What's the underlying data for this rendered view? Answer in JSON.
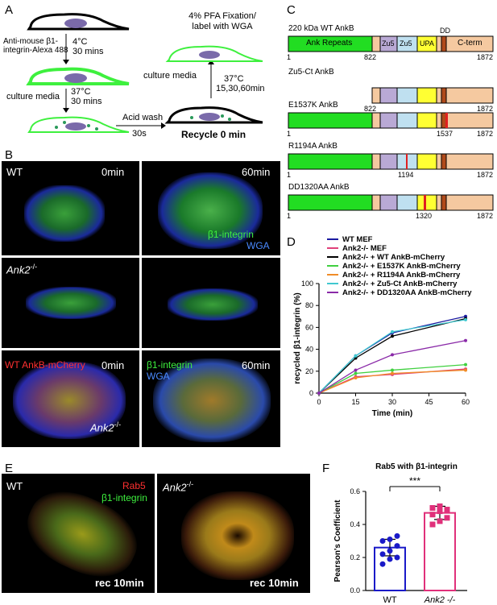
{
  "panels": {
    "A": "A",
    "B": "B",
    "C": "C",
    "D": "D",
    "E": "E",
    "F": "F"
  },
  "panelA": {
    "antibody": "Anti-mouse β1-\nintegrin-Alexa 488",
    "step1_temp": "4°C",
    "step1_time": "30 mins",
    "step2_temp": "37°C",
    "step2_media": "culture media",
    "step2_time": "30 mins",
    "acid_wash": "Acid wash",
    "acid_time": "30s",
    "recycle": "Recycle 0 min",
    "culture": "culture media",
    "step3_temp": "37°C",
    "step3_time": "15,30,60min",
    "fixation": "4% PFA Fixation/\nlabel with WGA"
  },
  "panelB": {
    "wt": "WT",
    "t0": "0min",
    "t60": "60min",
    "b1": "β1-integrin",
    "wga": "WGA",
    "ank2": "Ank2",
    "ko": "-/-",
    "wt_ankb": "WT AnkB-mCherry"
  },
  "panelC": {
    "constructs": [
      {
        "title": "220 kDa WT AnkB",
        "start": "1",
        "mid": "822",
        "end": "1872"
      },
      {
        "title": "Zu5-Ct AnkB",
        "start": "822",
        "end": "1872"
      },
      {
        "title": "E1537K AnkB",
        "start": "1",
        "mid": "1537",
        "end": "1872"
      },
      {
        "title": "R1194A AnkB",
        "start": "1",
        "mid": "1194",
        "end": "1872"
      },
      {
        "title": "DD1320AA AnkB",
        "start": "1",
        "mid": "1320",
        "end": "1872"
      }
    ],
    "domains": {
      "ank": "Ank Repeats",
      "zu5a": "Zu5",
      "zu5b": "Zu5",
      "upa": "UPA",
      "dd": "DD",
      "cterm": "C-term"
    }
  },
  "panelE": {
    "wt": "WT",
    "rab5": "Rab5",
    "b1": "β1-integrin",
    "ank2": "Ank2",
    "ko": "-/-",
    "rec": "rec 10min"
  },
  "chart_data": [
    {
      "type": "line",
      "ylabel": "recycled β1-integrin (%)",
      "xlabel": "Time (min)",
      "x": [
        0,
        15,
        30,
        60
      ],
      "xlim": [
        0,
        60
      ],
      "ylim": [
        0,
        100
      ],
      "xticks": [
        "0",
        "15",
        "30",
        "45",
        "60"
      ],
      "yticks": [
        "0",
        "20",
        "40",
        "60",
        "80",
        "100"
      ],
      "legend_placement": "top",
      "series": [
        {
          "name": "WT MEF",
          "color": "#1a1aa0",
          "values": [
            0,
            34,
            55,
            70
          ]
        },
        {
          "name": "Ank2-/- MEF",
          "color": "#e0407a",
          "values": [
            0,
            15,
            17,
            22
          ]
        },
        {
          "name": "Ank2-/- + WT AnkB-mCherry",
          "color": "#000000",
          "values": [
            0,
            32,
            52,
            68
          ]
        },
        {
          "name": "Ank2-/- + E1537K AnkB-mCherry",
          "color": "#40d040",
          "values": [
            0,
            18,
            21,
            26
          ]
        },
        {
          "name": "Ank2-/- + R1194A AnkB-mCherry",
          "color": "#f08c28",
          "values": [
            0,
            14,
            18,
            21
          ]
        },
        {
          "name": "Ank2-/- + Zu5-Ct AnkB-mCherry",
          "color": "#40c8d0",
          "values": [
            0,
            34,
            56,
            67
          ]
        },
        {
          "name": "Ank2-/- + DD1320AA AnkB-mCherry",
          "color": "#8a2aa8",
          "values": [
            0,
            21,
            35,
            48
          ]
        }
      ]
    },
    {
      "type": "bar",
      "title": "Rab5 with β1-integrin",
      "ylabel": "Pearson's Coefficient",
      "categories": [
        "WT",
        "Ank2 -/-"
      ],
      "values": [
        0.26,
        0.47
      ],
      "errors": [
        0.05,
        0.04
      ],
      "ylim": [
        0,
        0.6
      ],
      "yticks": [
        "0.0",
        "0.2",
        "0.4",
        "0.6"
      ],
      "significance": "***",
      "colors": [
        "#1a1ac8",
        "#e0307a"
      ],
      "points": [
        [
          0.16,
          0.19,
          0.2,
          0.22,
          0.24,
          0.27,
          0.3,
          0.31,
          0.33
        ],
        [
          0.4,
          0.42,
          0.44,
          0.46,
          0.48,
          0.49,
          0.5,
          0.51
        ]
      ]
    }
  ]
}
